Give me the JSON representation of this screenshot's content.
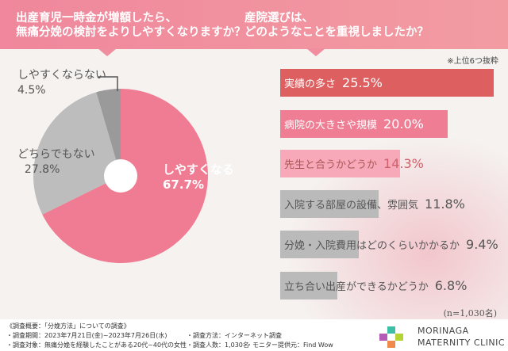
{
  "left_question": "出産育児一時金が増額したら、\n無痛分娩の検討をよりしやすくなりますか？",
  "right_question": "産院選びは、\nどのようなことを重視しましたか？",
  "note": "※上位6つ抜粋",
  "chart_data": [
    {
      "type": "pie",
      "donut": true,
      "slices": [
        {
          "label": "しやすくなる",
          "value": 67.7,
          "display": "67.7%",
          "color": "#ef7c93"
        },
        {
          "label": "どちらでもない",
          "value": 27.8,
          "display": "27.8%",
          "color": "#bdbdbd"
        },
        {
          "label": "しやすくならない",
          "value": 4.5,
          "display": "4.5%",
          "color": "#9a9a9a"
        }
      ]
    },
    {
      "type": "bar",
      "orientation": "horizontal",
      "categories": [
        "実績の多さ",
        "病院の大きさや規模",
        "先生と合うかどうか",
        "入院する部屋の設備、雰囲気",
        "分娩・入院費用はどのくらいかかるか",
        "立ち合い出産ができるかどうか"
      ],
      "values": [
        25.5,
        20.0,
        14.3,
        11.8,
        9.4,
        6.8
      ],
      "display": [
        "25.5%",
        "20.0%",
        "14.3%",
        "11.8%",
        "9.4%",
        "6.8%"
      ],
      "colors": [
        "#de5f60",
        "#ef7d94",
        "#f7a9ba",
        "#bababa",
        "#bababa",
        "#bababa"
      ]
    }
  ],
  "sample": "(n=1,030名)",
  "footer": {
    "l1": "《調査概要：「分娩方法」についての調査》",
    "l2": "・調査期間：2023年7月21日(金)~2023年7月26日(水)",
    "l3": "・調査対象：無痛分娩を経験したことがある20代~40代の女性",
    "m1": "・調査方法：インターネット調査",
    "m2": "・調査人数：1,030名",
    "m3": "・モニター提供元：Find Wow",
    "logo1": "MORINAGA",
    "logo2": "MATERNITY CLINIC"
  }
}
